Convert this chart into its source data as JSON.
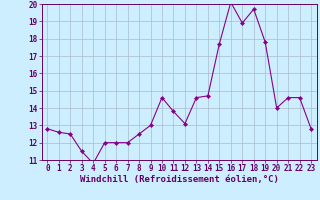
{
  "x": [
    0,
    1,
    2,
    3,
    4,
    5,
    6,
    7,
    8,
    9,
    10,
    11,
    12,
    13,
    14,
    15,
    16,
    17,
    18,
    19,
    20,
    21,
    22,
    23
  ],
  "y": [
    12.8,
    12.6,
    12.5,
    11.5,
    10.8,
    12.0,
    12.0,
    12.0,
    12.5,
    13.0,
    14.6,
    13.8,
    13.1,
    14.6,
    14.7,
    17.7,
    20.1,
    18.9,
    19.7,
    17.8,
    14.0,
    14.6,
    14.6,
    12.8
  ],
  "line_color": "#880088",
  "marker": "D",
  "marker_size": 2.2,
  "bg_color": "#cceeff",
  "grid_color": "#aabbcc",
  "tick_color": "#660066",
  "xlabel": "Windchill (Refroidissement éolien,°C)",
  "ylim": [
    11,
    20
  ],
  "xlim": [
    -0.5,
    23.5
  ],
  "yticks": [
    11,
    12,
    13,
    14,
    15,
    16,
    17,
    18,
    19,
    20
  ],
  "xticks": [
    0,
    1,
    2,
    3,
    4,
    5,
    6,
    7,
    8,
    9,
    10,
    11,
    12,
    13,
    14,
    15,
    16,
    17,
    18,
    19,
    20,
    21,
    22,
    23
  ],
  "tick_fontsize": 5.5,
  "xlabel_fontsize": 6.5
}
